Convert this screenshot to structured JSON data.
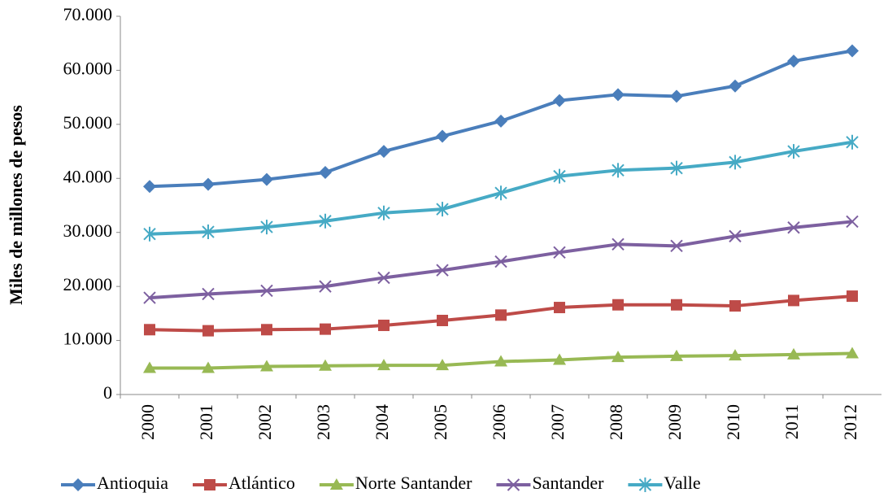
{
  "chart_data": {
    "type": "line",
    "y_label": "Miles de millones de pesos",
    "categories": [
      "2000",
      "2001",
      "2002",
      "2003",
      "2004",
      "2005",
      "2006",
      "2007",
      "2008",
      "2009",
      "2010",
      "2011",
      "2012"
    ],
    "ylim": [
      0,
      70000
    ],
    "yticks": [
      0,
      {
        "value": 10000,
        "label": "10.000"
      },
      {
        "value": 20000,
        "label": "20.000"
      },
      {
        "value": 30000,
        "label": "30.000"
      },
      {
        "value": 40000,
        "label": "40.000"
      },
      {
        "value": 50000,
        "label": "50.000"
      },
      {
        "value": 60000,
        "label": "60.000"
      },
      {
        "value": 70000,
        "label": "70.000"
      }
    ],
    "grid": false,
    "legend": "bottom",
    "series": [
      {
        "name": "Antioquia",
        "color": "#4a7ebb",
        "marker": "diamond",
        "values": [
          38500,
          38900,
          39800,
          41100,
          45000,
          47800,
          50600,
          54400,
          55500,
          55200,
          57100,
          61700,
          63600
        ]
      },
      {
        "name": "Atlántico",
        "color": "#be4b48",
        "marker": "square",
        "values": [
          12000,
          11800,
          12000,
          12100,
          12800,
          13700,
          14700,
          16100,
          16600,
          16600,
          16400,
          17400,
          18200
        ]
      },
      {
        "name": "Norte Santander",
        "color": "#98b954",
        "marker": "triangle",
        "values": [
          4900,
          4900,
          5200,
          5300,
          5400,
          5400,
          6100,
          6400,
          6900,
          7100,
          7200,
          7400,
          7600
        ]
      },
      {
        "name": "Santander",
        "color": "#7d60a0",
        "marker": "x",
        "values": [
          17900,
          18600,
          19200,
          20000,
          21600,
          23000,
          24600,
          26300,
          27800,
          27500,
          29300,
          30900,
          32000
        ]
      },
      {
        "name": "Valle",
        "color": "#46aac5",
        "marker": "asterisk",
        "values": [
          29700,
          30100,
          31000,
          32100,
          33600,
          34300,
          37300,
          40400,
          41500,
          41900,
          43000,
          45000,
          46700
        ]
      }
    ]
  }
}
